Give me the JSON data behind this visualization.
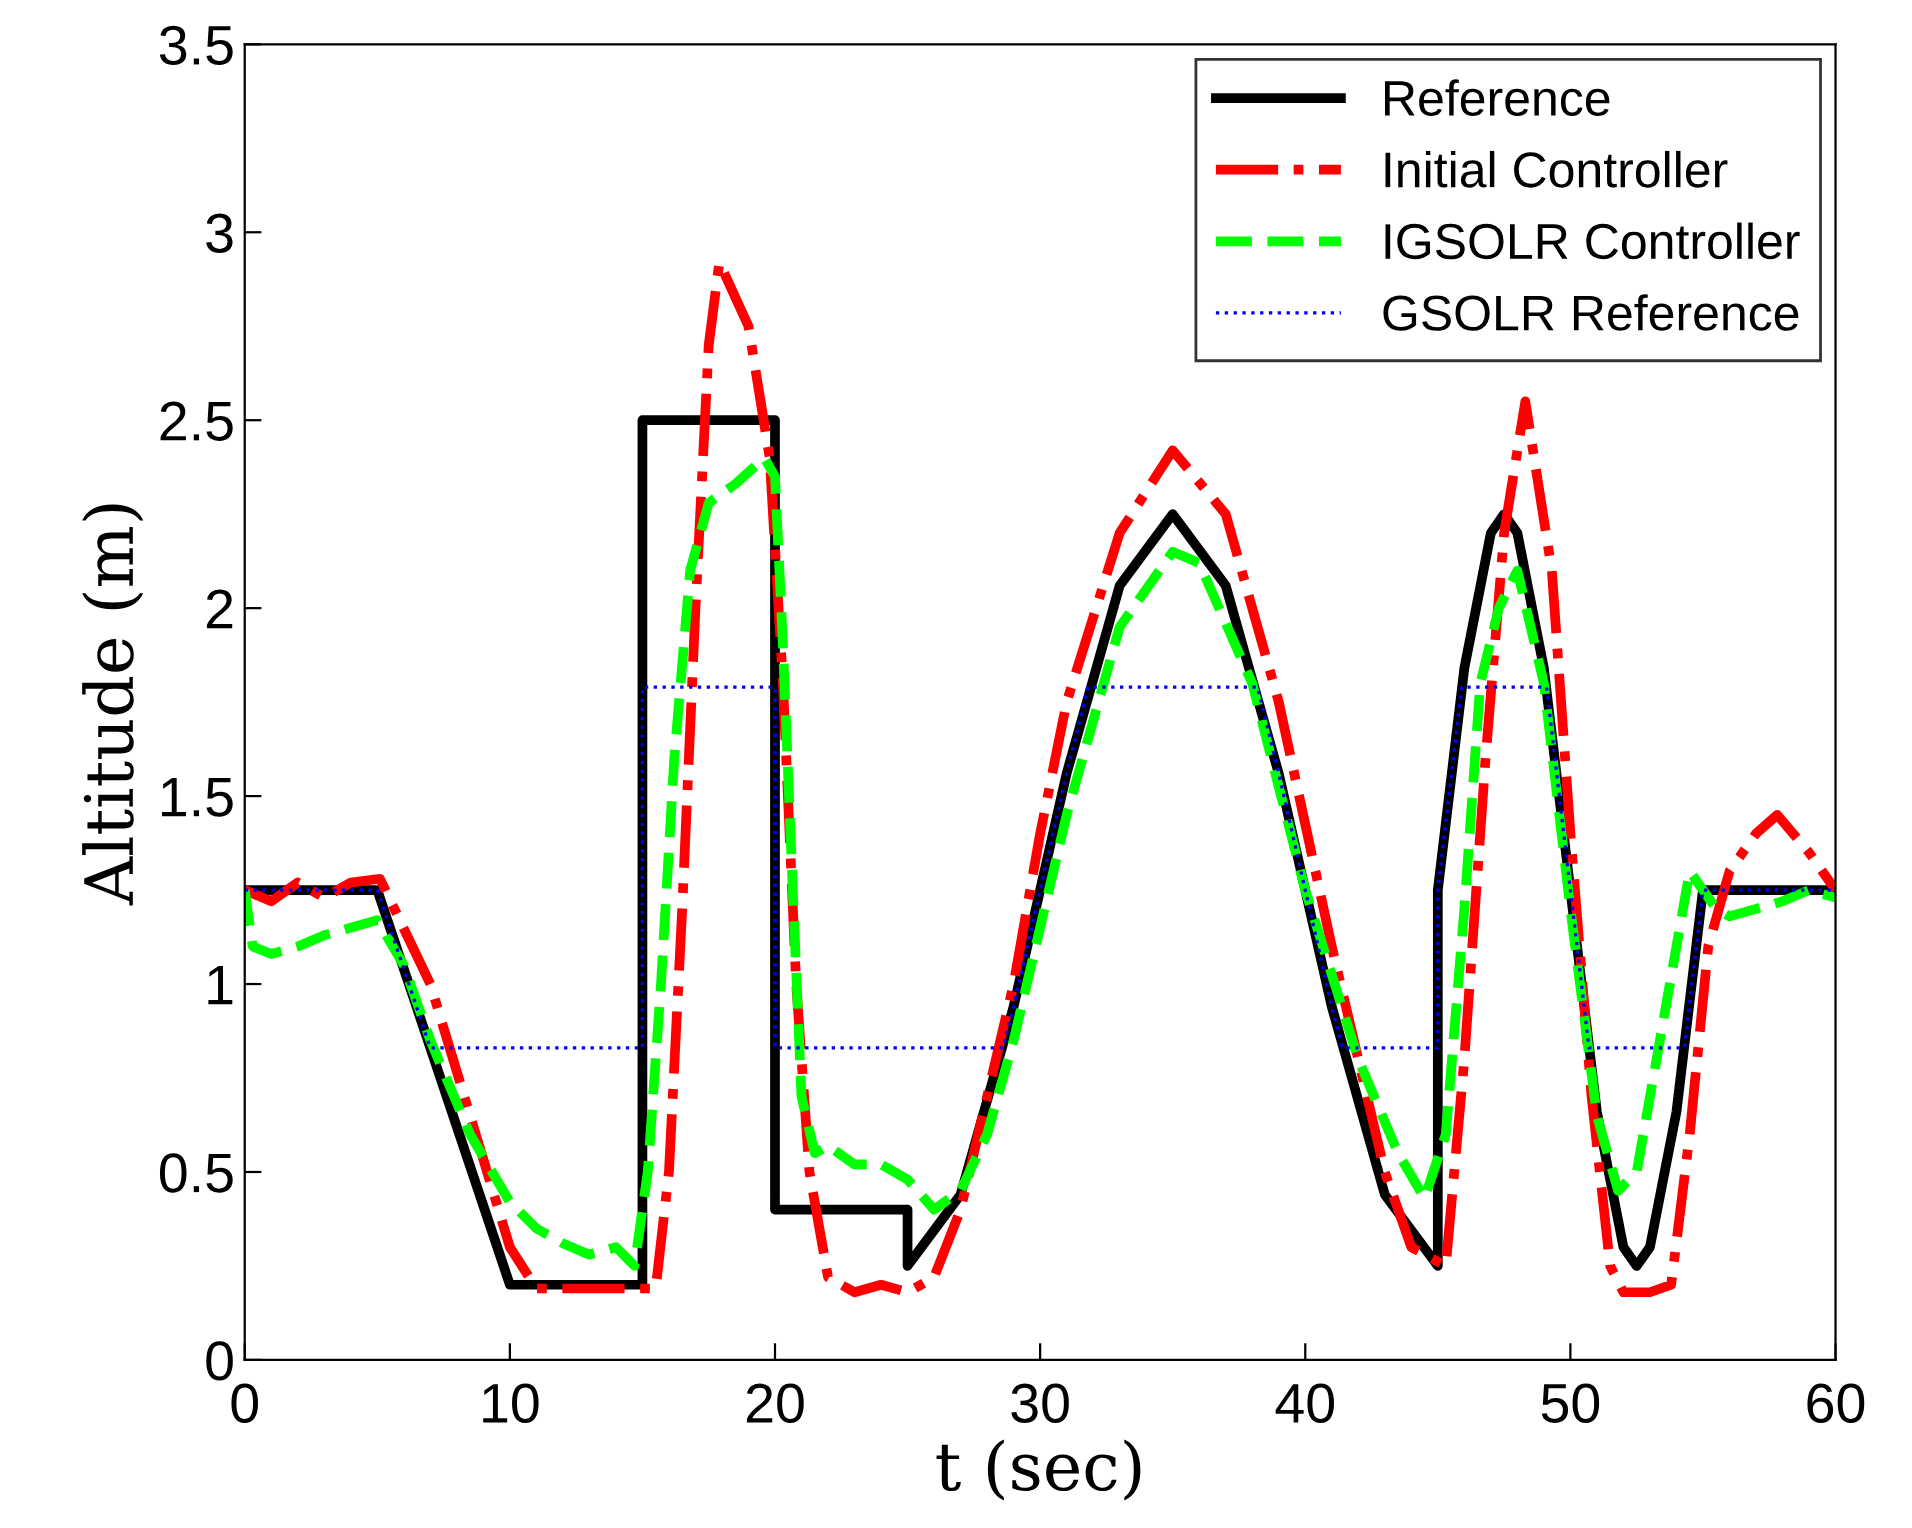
{
  "chart_data": {
    "type": "line",
    "xlabel": "t (sec)",
    "ylabel": "Altitude (m)",
    "xlim": [
      0,
      60
    ],
    "ylim": [
      0,
      3.5
    ],
    "xticks": [
      0,
      10,
      20,
      30,
      40,
      50,
      60
    ],
    "yticks": [
      0,
      0.5,
      1,
      1.5,
      2,
      2.5,
      3,
      3.5
    ],
    "legend": "top right",
    "grid": false,
    "series": [
      {
        "name": "Reference",
        "color": "#000000",
        "line_style": "solid",
        "x": [
          0,
          5,
          10,
          15,
          15,
          20,
          20,
          25,
          25,
          27,
          29,
          31,
          33,
          35,
          37,
          39,
          41,
          43,
          45,
          45,
          46,
          47,
          47.5,
          48,
          49,
          50,
          51,
          52,
          52.5,
          53,
          54,
          55,
          60
        ],
        "values": [
          1.25,
          1.25,
          0.2,
          0.2,
          2.5,
          2.5,
          0.4,
          0.4,
          0.25,
          0.44,
          0.94,
          1.56,
          2.06,
          2.25,
          2.06,
          1.56,
          0.94,
          0.44,
          0.25,
          1.25,
          1.84,
          2.2,
          2.25,
          2.2,
          1.84,
          1.25,
          0.66,
          0.3,
          0.25,
          0.3,
          0.66,
          1.25,
          1.25
        ]
      },
      {
        "name": "Initial Controller",
        "color": "#ff0000",
        "line_style": "dashdot",
        "x": [
          0,
          1,
          2,
          3,
          4,
          5.1,
          7,
          8.5,
          10,
          11,
          15.5,
          16,
          16.5,
          17,
          17.5,
          17.9,
          19,
          19.8,
          20.3,
          20.8,
          21.3,
          22,
          23,
          24,
          25,
          26,
          27,
          28,
          29,
          30,
          31,
          33,
          35,
          37,
          39,
          41,
          43,
          44,
          45.3,
          46,
          46.8,
          47.5,
          48.3,
          49.3,
          50,
          50.8,
          51.5,
          52,
          53,
          53.8,
          54.5,
          55.2,
          56,
          57,
          57.8,
          59,
          60
        ],
        "values": [
          1.25,
          1.22,
          1.27,
          1.23,
          1.27,
          1.28,
          1.0,
          0.65,
          0.3,
          0.19,
          0.19,
          0.5,
          1.2,
          2.0,
          2.7,
          2.92,
          2.75,
          2.4,
          1.8,
          1.0,
          0.5,
          0.22,
          0.18,
          0.2,
          0.18,
          0.22,
          0.4,
          0.7,
          1.0,
          1.4,
          1.75,
          2.2,
          2.42,
          2.25,
          1.75,
          1.1,
          0.5,
          0.3,
          0.25,
          0.8,
          1.6,
          2.2,
          2.55,
          2.1,
          1.4,
          0.7,
          0.25,
          0.18,
          0.18,
          0.2,
          0.6,
          1.1,
          1.3,
          1.4,
          1.45,
          1.35,
          1.25
        ]
      },
      {
        "name": "IGSOLR Controller",
        "color": "#00ff00",
        "line_style": "dashed",
        "x": [
          0,
          0.3,
          1,
          2,
          3,
          4,
          5,
          6,
          7,
          8.5,
          10,
          11,
          12,
          13,
          14,
          14.7,
          15.2,
          15.7,
          16.2,
          16.8,
          17.5,
          18.5,
          19.6,
          20,
          20.3,
          20.7,
          21,
          21.5,
          22,
          23,
          24,
          25,
          26,
          27,
          28,
          29,
          30,
          31,
          33,
          35,
          36,
          38,
          40,
          42,
          43.5,
          44.5,
          45.3,
          46,
          46.6,
          47.3,
          48,
          49,
          50,
          51,
          51.8,
          52.5,
          53.5,
          54.5,
          55.5,
          56,
          57,
          58,
          59,
          60
        ],
        "values": [
          1.25,
          1.1,
          1.08,
          1.1,
          1.13,
          1.15,
          1.17,
          1.05,
          0.85,
          0.6,
          0.42,
          0.35,
          0.31,
          0.28,
          0.3,
          0.25,
          0.5,
          1.0,
          1.6,
          2.1,
          2.28,
          2.33,
          2.4,
          2.35,
          1.9,
          1.2,
          0.7,
          0.55,
          0.57,
          0.52,
          0.52,
          0.48,
          0.4,
          0.45,
          0.6,
          0.85,
          1.15,
          1.45,
          1.95,
          2.15,
          2.12,
          1.8,
          1.25,
          0.8,
          0.55,
          0.43,
          0.6,
          1.2,
          1.8,
          2.0,
          2.1,
          1.8,
          1.2,
          0.65,
          0.45,
          0.5,
          0.9,
          1.3,
          1.2,
          1.18,
          1.2,
          1.22,
          1.25,
          1.23
        ]
      },
      {
        "name": "GSOLR Reference",
        "color": "#0000ff",
        "line_style": "dotted",
        "x": [
          0,
          5,
          7,
          15,
          15,
          20,
          20,
          28.6,
          29,
          31,
          31.8,
          38.2,
          39,
          41,
          41.4,
          45,
          45,
          45.9,
          49.1,
          50,
          50.7,
          54.3,
          55,
          60
        ],
        "values": [
          1.25,
          1.25,
          0.83,
          0.83,
          1.79,
          1.79,
          0.83,
          0.83,
          0.94,
          1.56,
          1.79,
          1.79,
          1.56,
          0.94,
          0.83,
          0.83,
          1.25,
          1.79,
          1.79,
          1.25,
          0.83,
          0.83,
          1.25,
          1.25
        ]
      }
    ]
  }
}
